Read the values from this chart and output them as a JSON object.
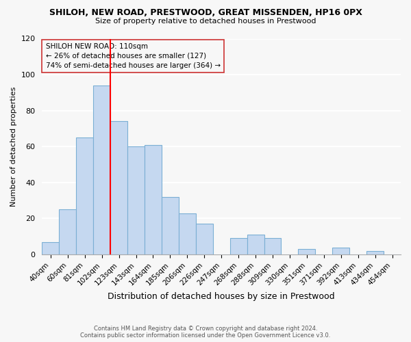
{
  "title": "SHILOH, NEW ROAD, PRESTWOOD, GREAT MISSENDEN, HP16 0PX",
  "subtitle": "Size of property relative to detached houses in Prestwood",
  "xlabel": "Distribution of detached houses by size in Prestwood",
  "ylabel": "Number of detached properties",
  "bin_labels": [
    "40sqm",
    "60sqm",
    "81sqm",
    "102sqm",
    "123sqm",
    "143sqm",
    "164sqm",
    "185sqm",
    "206sqm",
    "226sqm",
    "247sqm",
    "268sqm",
    "288sqm",
    "309sqm",
    "330sqm",
    "351sqm",
    "371sqm",
    "392sqm",
    "413sqm",
    "434sqm",
    "454sqm"
  ],
  "bar_values": [
    7,
    25,
    65,
    94,
    74,
    60,
    61,
    32,
    23,
    17,
    0,
    9,
    11,
    9,
    0,
    3,
    0,
    4,
    0,
    2,
    0
  ],
  "bar_color": "#c5d8f0",
  "bar_edgecolor": "#7bafd4",
  "vline_color": "red",
  "annotation_title": "SHILOH NEW ROAD: 110sqm",
  "annotation_line1": "← 26% of detached houses are smaller (127)",
  "annotation_line2": "74% of semi-detached houses are larger (364) →",
  "ylim": [
    0,
    120
  ],
  "yticks": [
    0,
    20,
    40,
    60,
    80,
    100,
    120
  ],
  "footer1": "Contains HM Land Registry data © Crown copyright and database right 2024.",
  "footer2": "Contains public sector information licensed under the Open Government Licence v3.0.",
  "bg_color": "#f7f7f7",
  "grid_color": "#dddddd"
}
